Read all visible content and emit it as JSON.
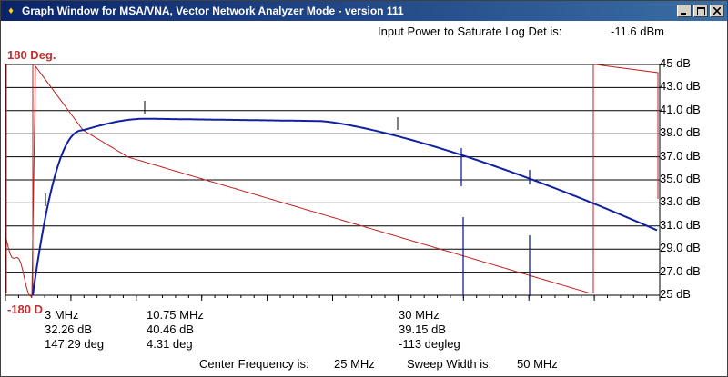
{
  "window": {
    "title": "Graph Window for MSA/VNA, Vector Network Analyzer Mode - version 111"
  },
  "header": {
    "saturate_label": "Input Power to Saturate Log Det is:",
    "saturate_value": "-11.6 dBm"
  },
  "phase_axis": {
    "top_label": "180 Deg.",
    "bottom_label": "-180 D"
  },
  "mag_axis": {
    "tick_labels": [
      "45 dB",
      "43.0 dB",
      "41.0 dB",
      "39.0 dB",
      "37.0 dB",
      "35.0 dB",
      "33.0 dB",
      "31.0 dB",
      "29.0 dB",
      "27.0 dB",
      "25 dB"
    ]
  },
  "markers": [
    {
      "freq": "3 MHz",
      "mag": "32.26 dB",
      "phase": "147.29 deg"
    },
    {
      "freq": "10.75 MHz",
      "mag": "40.46 dB",
      "phase": "4.31 deg"
    },
    {
      "freq": "30 MHz",
      "mag": "39.15 dB",
      "phase": "-113 degleg"
    }
  ],
  "footer": {
    "center_label": "Center Frequency is:",
    "center_value": "25 MHz",
    "span_label": "Sweep Width is:",
    "span_value": "50 MHz"
  },
  "colors": {
    "magnitude_trace": "#1020a0",
    "phase_trace": "#c02020",
    "title_bar": "#0a246a"
  }
}
